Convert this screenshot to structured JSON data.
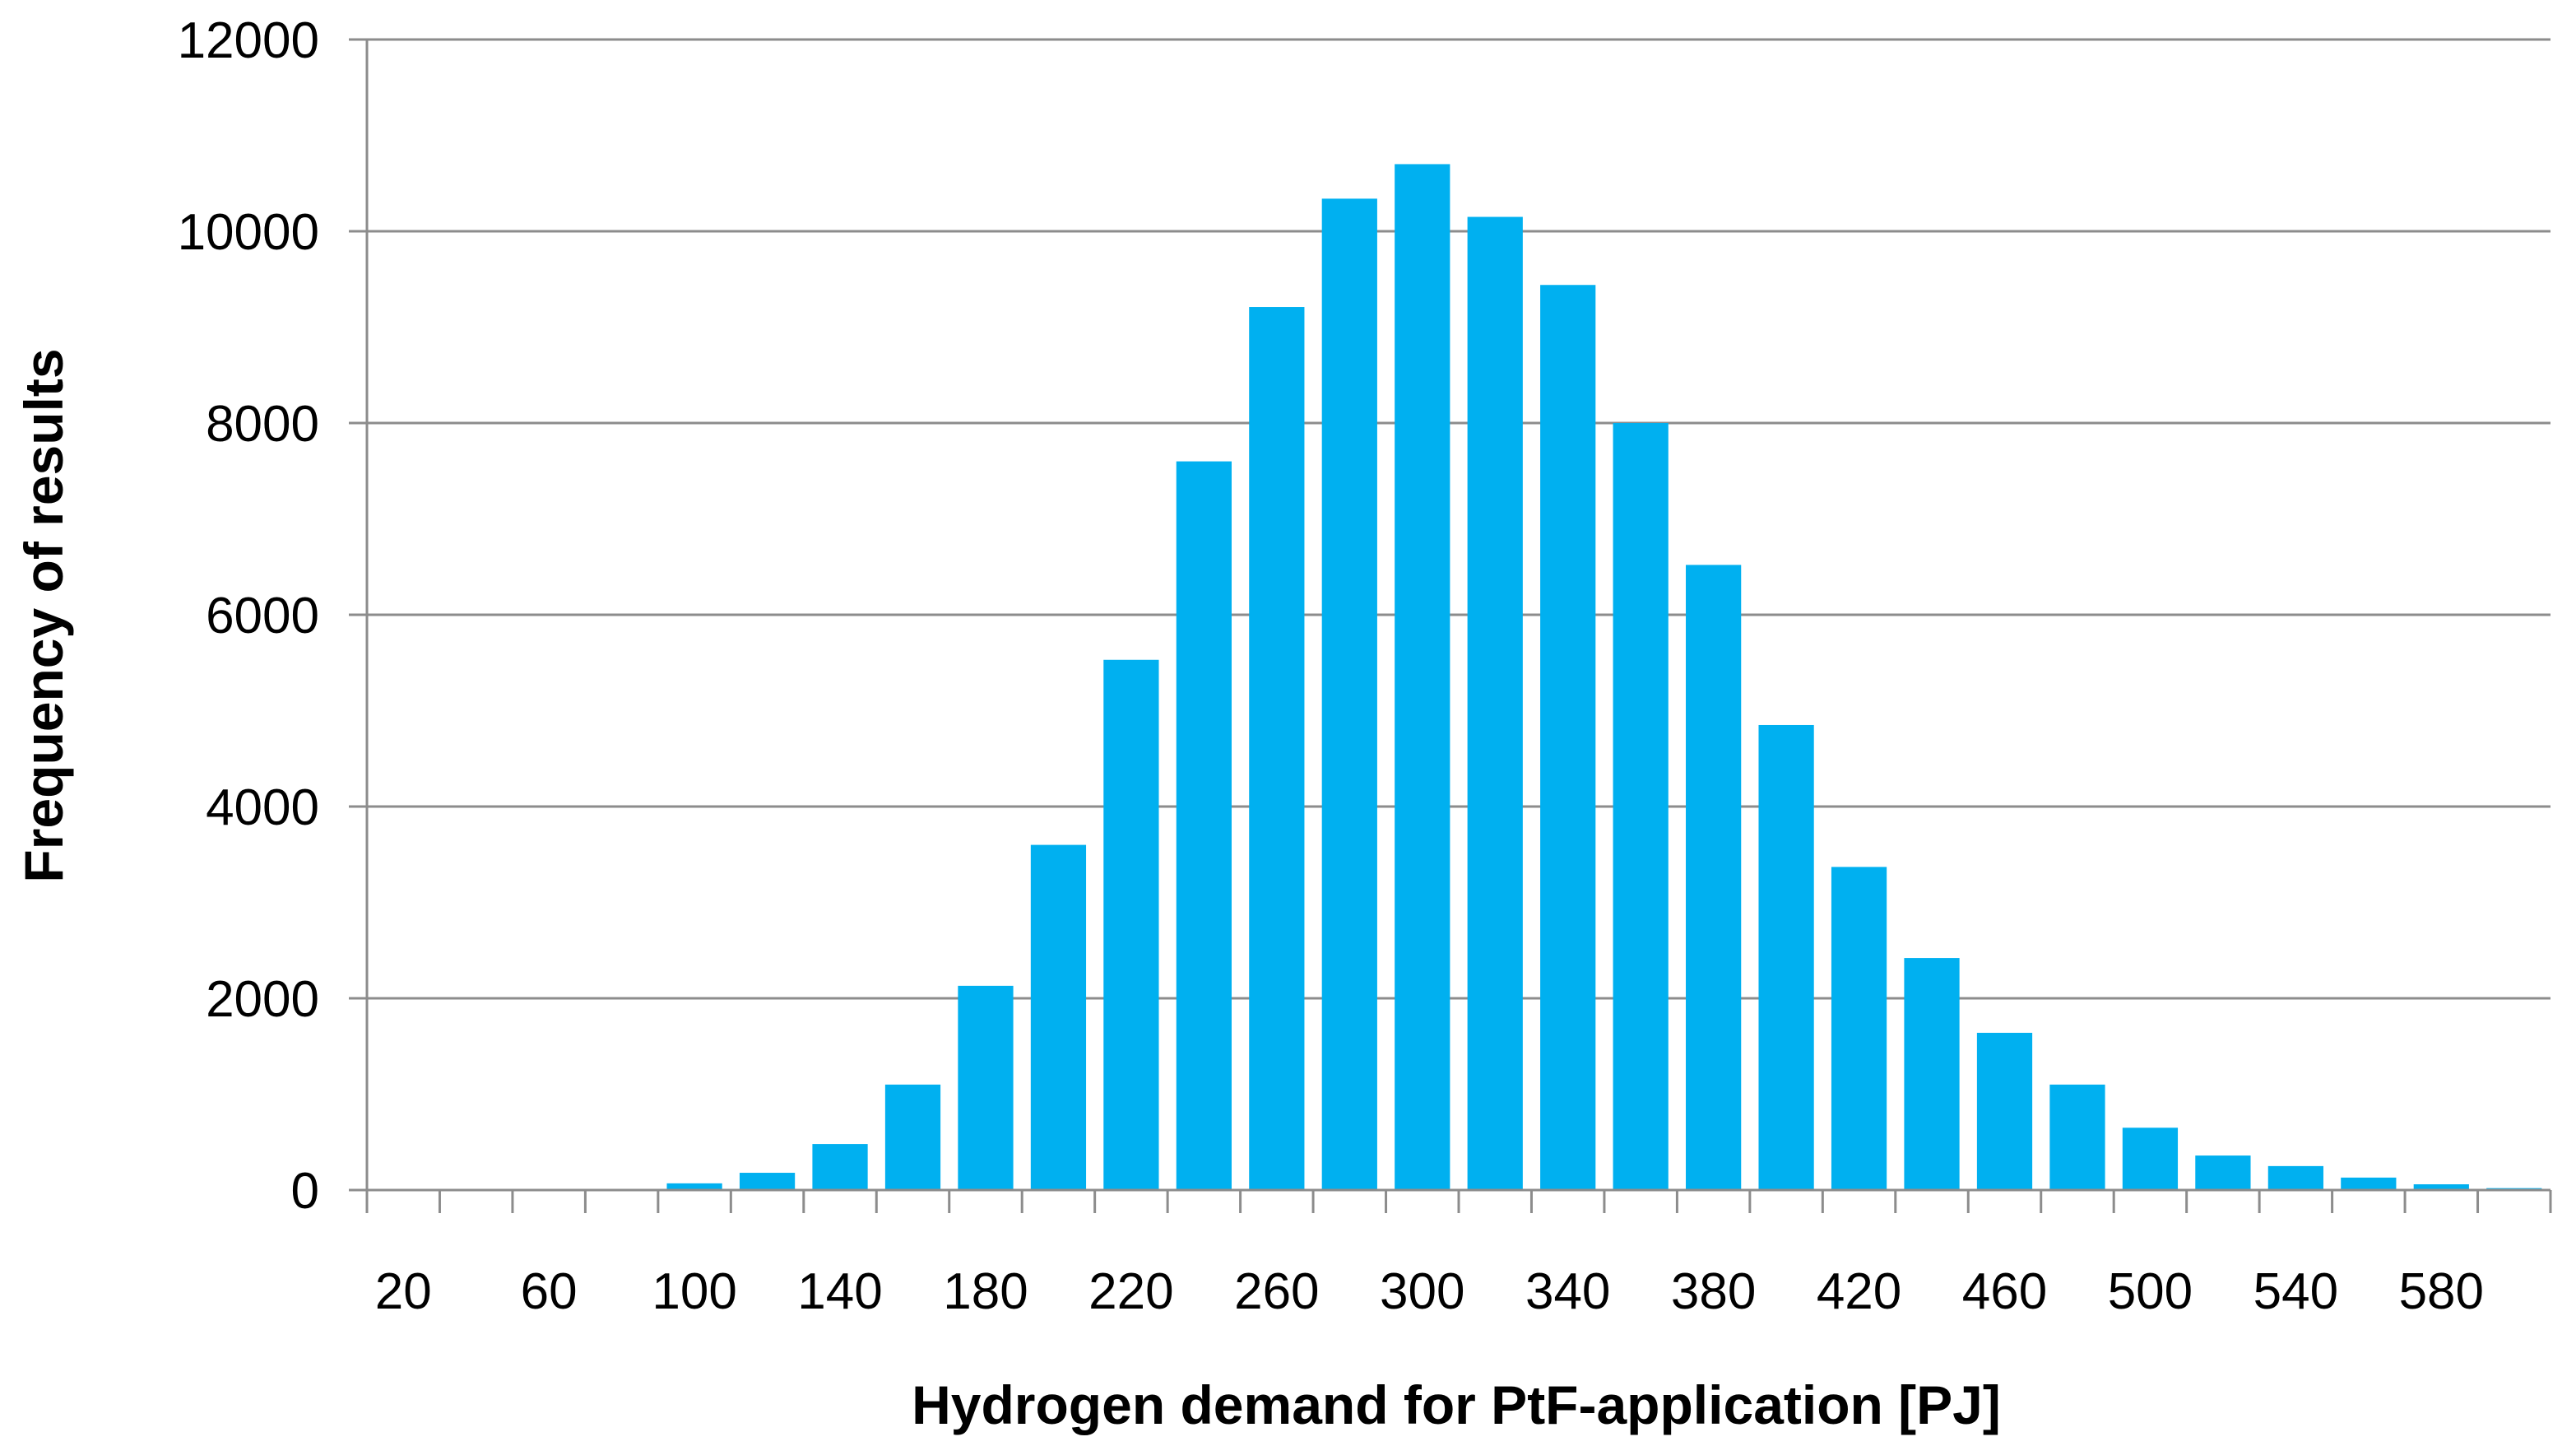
{
  "chart_data": {
    "type": "bar",
    "title": "",
    "xlabel": "Hydrogen demand for PtF-application [PJ]",
    "ylabel": "Frequency of results",
    "ylim": [
      0,
      12000
    ],
    "yticks": [
      0,
      2000,
      4000,
      6000,
      8000,
      10000,
      12000
    ],
    "grid": true,
    "legend": "none",
    "bar_color": "#00B0F0",
    "categories": [
      "20",
      "40",
      "60",
      "80",
      "100",
      "120",
      "140",
      "160",
      "180",
      "200",
      "220",
      "240",
      "260",
      "280",
      "300",
      "320",
      "340",
      "360",
      "380",
      "400",
      "420",
      "440",
      "460",
      "480",
      "500",
      "520",
      "540",
      "560",
      "580",
      "600"
    ],
    "xtick_labels": [
      "20",
      "",
      "60",
      "",
      "100",
      "",
      "140",
      "",
      "180",
      "",
      "220",
      "",
      "260",
      "",
      "300",
      "",
      "340",
      "",
      "380",
      "",
      "420",
      "",
      "460",
      "",
      "500",
      "",
      "540",
      "",
      "580",
      ""
    ],
    "values": [
      0,
      0,
      0,
      0,
      70,
      180,
      480,
      1100,
      2130,
      3600,
      5530,
      7600,
      9210,
      10340,
      10700,
      10150,
      9440,
      8000,
      6520,
      4850,
      3370,
      2420,
      1640,
      1100,
      650,
      360,
      250,
      130,
      60,
      20
    ]
  }
}
